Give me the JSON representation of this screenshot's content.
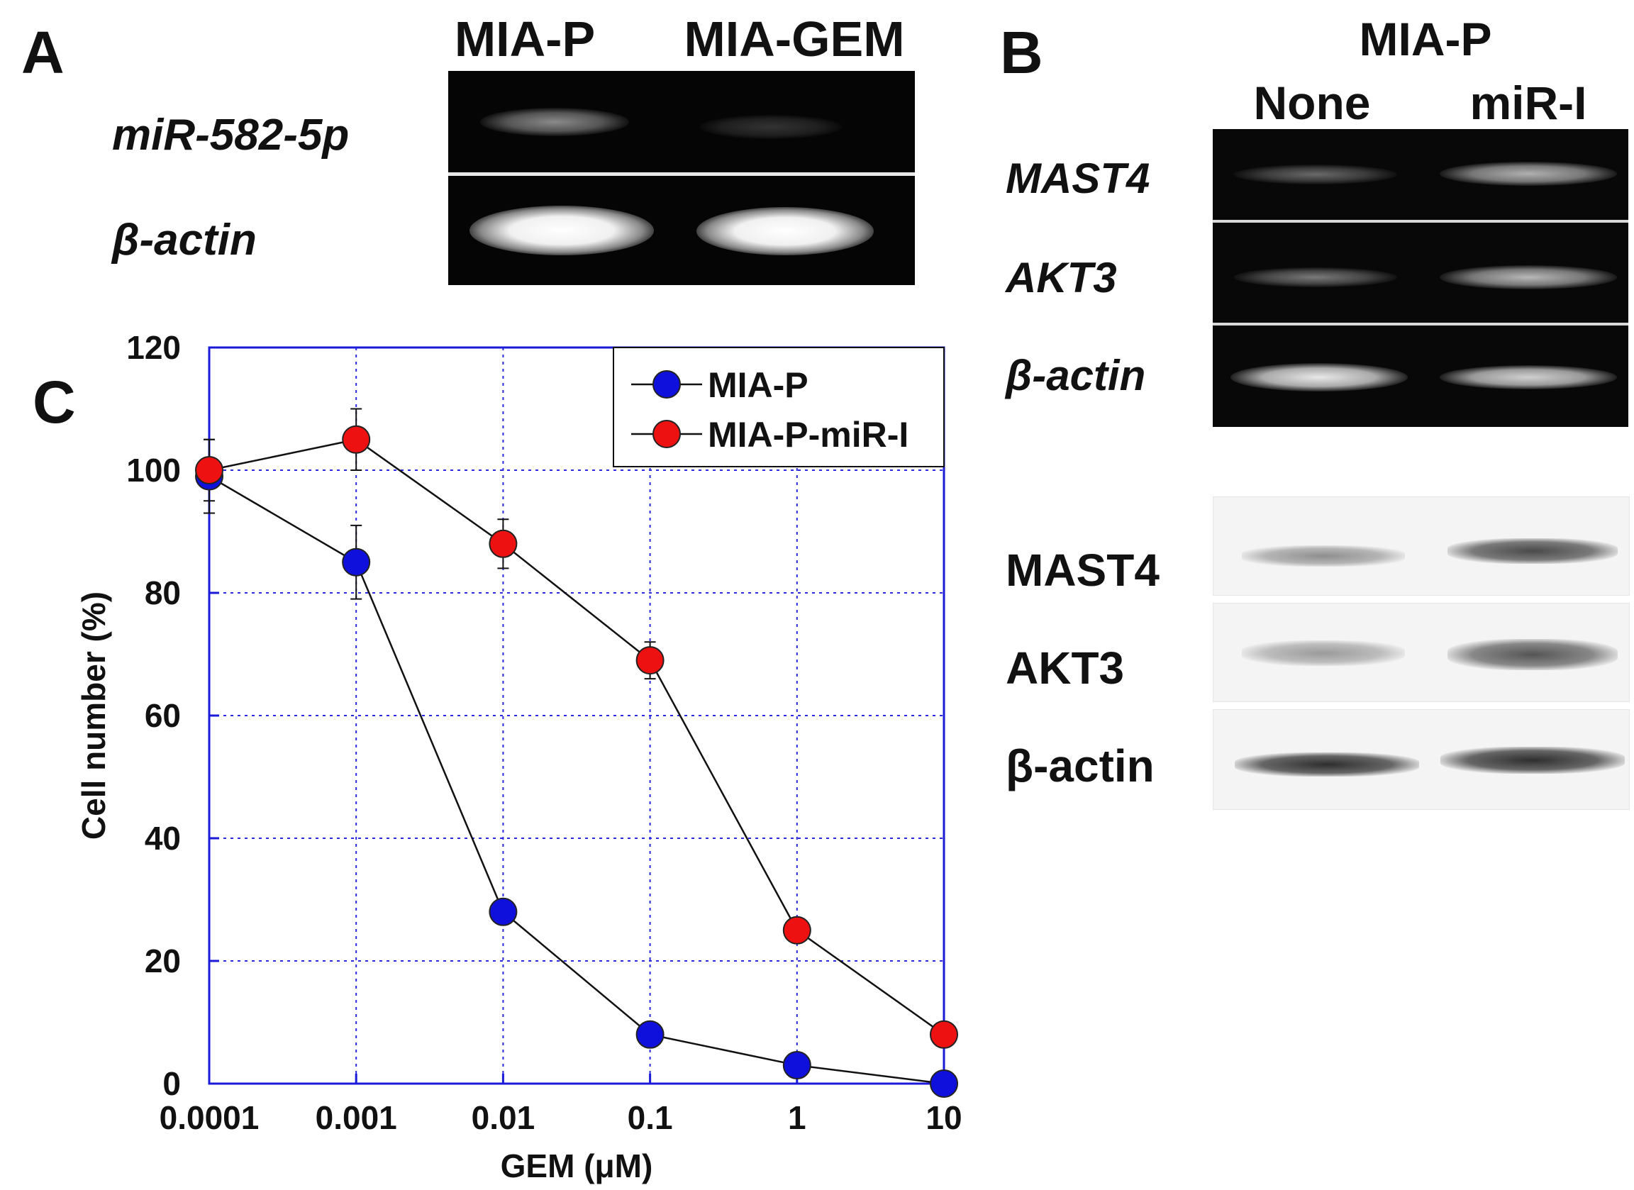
{
  "panelA": {
    "letter": "A",
    "columns": [
      "MIA-P",
      "MIA-GEM"
    ],
    "rows": [
      "miR-582-5p",
      "β-actin"
    ]
  },
  "panelB": {
    "letter": "B",
    "cell_line": "MIA-P",
    "columns": [
      "None",
      "miR-I"
    ],
    "pcr_rows": [
      "MAST4",
      "AKT3",
      "β-actin"
    ],
    "wb_rows": [
      "MAST4",
      "AKT3",
      "β-actin"
    ]
  },
  "panelC": {
    "letter": "C"
  },
  "chart_data": {
    "type": "line",
    "xscale": "log",
    "x": [
      0.0001,
      0.001,
      0.01,
      0.1,
      1,
      10
    ],
    "x_tick_labels": [
      "0.0001",
      "0.001",
      "0.01",
      "0.1",
      "1",
      "10"
    ],
    "xlabel": "GEM (μM)",
    "ylabel": "Cell number (%)",
    "ylim": [
      0,
      120
    ],
    "y_ticks": [
      0,
      20,
      40,
      60,
      80,
      100,
      120
    ],
    "grid": true,
    "legend_position": "top-right",
    "series": [
      {
        "name": "MIA-P",
        "color": "#1010dd",
        "values": [
          99,
          85,
          28,
          8,
          3,
          0
        ],
        "error": [
          6,
          6,
          0,
          0,
          0,
          0
        ]
      },
      {
        "name": "MIA-P-miR-I",
        "color": "#ee1111",
        "values": [
          100,
          105,
          88,
          69,
          25,
          8
        ],
        "error": [
          5,
          5,
          4,
          3,
          0,
          0
        ]
      }
    ]
  }
}
